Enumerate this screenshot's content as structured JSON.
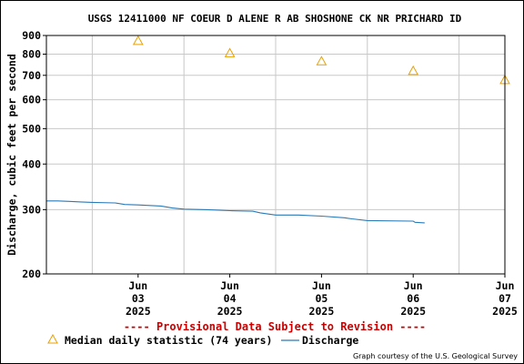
{
  "colors": {
    "median": "#e8a000",
    "discharge": "#2a7ab8",
    "provisional": "#cc0000",
    "grid": "#c8c8c8"
  },
  "chart_data": {
    "type": "line",
    "title": "USGS 12411000 NF COEUR D ALENE R AB SHOSHONE CK NR PRICHARD ID",
    "ylabel": "Discharge, cubic feet per second",
    "yscale": "log",
    "ylim": [
      200,
      900
    ],
    "yticks": [
      200,
      300,
      400,
      500,
      600,
      700,
      800,
      900
    ],
    "xlim": [
      "2025-06-02T12:00",
      "2025-06-07T12:00"
    ],
    "xticks": [
      {
        "x": "2025-06-03",
        "lines": [
          "Jun",
          "03",
          "2025"
        ]
      },
      {
        "x": "2025-06-04",
        "lines": [
          "Jun",
          "04",
          "2025"
        ]
      },
      {
        "x": "2025-06-05",
        "lines": [
          "Jun",
          "05",
          "2025"
        ]
      },
      {
        "x": "2025-06-06",
        "lines": [
          "Jun",
          "06",
          "2025"
        ]
      },
      {
        "x": "2025-06-07",
        "lines": [
          "Jun",
          "07",
          "2025"
        ]
      }
    ],
    "series": [
      {
        "name": "Discharge",
        "kind": "line",
        "points": [
          [
            "2025-06-02T12:00",
            317
          ],
          [
            "2025-06-02T15:00",
            317
          ],
          [
            "2025-06-02T18:00",
            316
          ],
          [
            "2025-06-02T21:00",
            315
          ],
          [
            "2025-06-03T00:00",
            314
          ],
          [
            "2025-06-03T06:00",
            313
          ],
          [
            "2025-06-03T08:30",
            310
          ],
          [
            "2025-06-03T12:00",
            309
          ],
          [
            "2025-06-03T18:00",
            307
          ],
          [
            "2025-06-03T21:00",
            303
          ],
          [
            "2025-06-04T00:00",
            301
          ],
          [
            "2025-06-04T06:00",
            300
          ],
          [
            "2025-06-04T12:00",
            298
          ],
          [
            "2025-06-04T18:00",
            297
          ],
          [
            "2025-06-04T20:00",
            294
          ],
          [
            "2025-06-05T00:00",
            290
          ],
          [
            "2025-06-05T06:00",
            290
          ],
          [
            "2025-06-05T12:00",
            288
          ],
          [
            "2025-06-05T18:00",
            285
          ],
          [
            "2025-06-05T20:00",
            283
          ],
          [
            "2025-06-06T00:00",
            280
          ],
          [
            "2025-06-06T12:00",
            279
          ],
          [
            "2025-06-06T12:30",
            277
          ],
          [
            "2025-06-06T15:00",
            276
          ]
        ]
      },
      {
        "name": "Median daily statistic (74 years)",
        "kind": "marker",
        "points": [
          [
            "2025-06-03",
            870
          ],
          [
            "2025-06-04",
            805
          ],
          [
            "2025-06-05",
            765
          ],
          [
            "2025-06-06",
            720
          ],
          [
            "2025-06-07",
            680
          ]
        ]
      }
    ]
  },
  "provisional_text": "---- Provisional Data Subject to Revision ----",
  "legend": {
    "median_label": "Median daily statistic (74 years)",
    "discharge_label": "Discharge"
  },
  "credit": "Graph courtesy of the U.S. Geological Survey"
}
